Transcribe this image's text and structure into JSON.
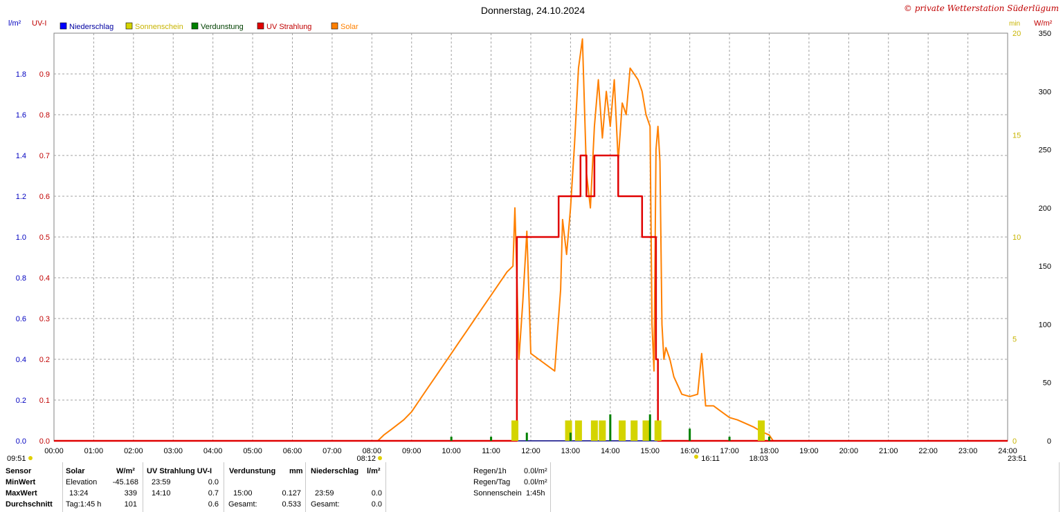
{
  "chart_data": {
    "type": "line",
    "title": "Donnerstag, 24.10.2024",
    "credit": "© private Wetterstation Süderlügum",
    "x_ticks": [
      "00:00",
      "01:00",
      "02:00",
      "03:00",
      "04:00",
      "05:00",
      "06:00",
      "07:00",
      "08:00",
      "09:00",
      "10:00",
      "11:00",
      "12:00",
      "13:00",
      "14:00",
      "15:00",
      "16:00",
      "17:00",
      "18:00",
      "19:00",
      "20:00",
      "21:00",
      "22:00",
      "23:00",
      "24:00"
    ],
    "xlim_hours": [
      0,
      24
    ],
    "axes": {
      "left_outer": {
        "unit": "l/m²",
        "ticks": [
          "0.0",
          "0.2",
          "0.4",
          "0.6",
          "0.8",
          "1.0",
          "1.2",
          "1.4",
          "1.6",
          "1.8"
        ],
        "ylim": [
          0,
          2.0
        ],
        "color": "#0000c0"
      },
      "left_inner": {
        "unit": "UV-I",
        "ticks": [
          "0.0",
          "0.1",
          "0.2",
          "0.3",
          "0.4",
          "0.5",
          "0.6",
          "0.7",
          "0.8",
          "0.9"
        ],
        "ylim": [
          0,
          1.0
        ],
        "color": "#c00000"
      },
      "right_inner": {
        "unit": "min",
        "ticks": [
          "0",
          "5",
          "10",
          "15",
          "20"
        ],
        "ylim": [
          0,
          20
        ],
        "color": "#c8b400"
      },
      "right_outer": {
        "unit": "W/m²",
        "ticks": [
          "0",
          "50",
          "100",
          "150",
          "200",
          "250",
          "300",
          "350"
        ],
        "ylim": [
          0,
          350
        ],
        "color": "#000000"
      }
    },
    "legend": [
      {
        "label": "Niederschlag",
        "color": "#0000ff",
        "text_color": "#0000a0"
      },
      {
        "label": "Sonnenschein",
        "color": "#d4d400",
        "text_color": "#c8b400"
      },
      {
        "label": "Verdunstung",
        "color": "#008000",
        "text_color": "#004000"
      },
      {
        "label": "UV Strahlung",
        "color": "#e00000",
        "text_color": "#c00000"
      },
      {
        "label": "Solar",
        "color": "#ff8000",
        "text_color": "#ff8000"
      }
    ],
    "series": [
      {
        "name": "Solar",
        "axis": "right_outer",
        "color": "#ff8000",
        "x": [
          8.15,
          8.3,
          8.5,
          8.8,
          9.0,
          9.2,
          9.4,
          9.6,
          9.8,
          10.0,
          10.2,
          10.4,
          10.6,
          10.8,
          11.0,
          11.2,
          11.4,
          11.55,
          11.6,
          11.65,
          11.7,
          11.8,
          11.9,
          12.0,
          12.2,
          12.4,
          12.6,
          12.75,
          12.8,
          12.9,
          13.0,
          13.1,
          13.2,
          13.3,
          13.4,
          13.5,
          13.6,
          13.7,
          13.8,
          13.9,
          14.0,
          14.1,
          14.2,
          14.3,
          14.4,
          14.5,
          14.6,
          14.7,
          14.8,
          14.9,
          15.0,
          15.05,
          15.1,
          15.15,
          15.2,
          15.25,
          15.3,
          15.35,
          15.4,
          15.5,
          15.6,
          15.8,
          16.0,
          16.2,
          16.3,
          16.4,
          16.6,
          16.8,
          17.0,
          17.2,
          17.4,
          17.6,
          17.8,
          18.0,
          18.1
        ],
        "y": [
          0,
          5,
          10,
          18,
          25,
          35,
          45,
          55,
          65,
          75,
          85,
          95,
          105,
          115,
          125,
          135,
          145,
          150,
          200,
          140,
          70,
          120,
          180,
          75,
          70,
          65,
          60,
          130,
          190,
          160,
          200,
          255,
          320,
          345,
          230,
          200,
          270,
          310,
          260,
          300,
          270,
          310,
          240,
          290,
          280,
          320,
          315,
          310,
          300,
          280,
          270,
          100,
          60,
          250,
          270,
          240,
          100,
          70,
          80,
          70,
          55,
          40,
          38,
          40,
          75,
          30,
          30,
          25,
          20,
          18,
          15,
          12,
          8,
          5,
          0
        ]
      },
      {
        "name": "UV Strahlung",
        "axis": "left_inner",
        "color": "#e00000",
        "step": true,
        "x": [
          0,
          11.65,
          11.65,
          12.7,
          12.7,
          13.25,
          13.25,
          13.4,
          13.4,
          13.6,
          13.6,
          14.2,
          14.2,
          14.8,
          14.8,
          15.15,
          15.15,
          15.2,
          15.2,
          24
        ],
        "y": [
          0,
          0,
          0.5,
          0.5,
          0.6,
          0.6,
          0.7,
          0.7,
          0.6,
          0.6,
          0.7,
          0.7,
          0.6,
          0.6,
          0.5,
          0.5,
          0.2,
          0.2,
          0,
          0
        ]
      },
      {
        "name": "Sonnenschein",
        "axis": "right_inner",
        "color": "#d4d400",
        "type": "bar",
        "x": [
          11.6,
          12.95,
          13.2,
          13.6,
          13.8,
          14.3,
          14.6,
          14.9,
          15.2,
          17.8
        ],
        "y": [
          1,
          1,
          1,
          1,
          1,
          1,
          1,
          1,
          1,
          1
        ]
      },
      {
        "name": "Verdunstung",
        "axis": "left_outer",
        "color": "#008000",
        "type": "bar",
        "x": [
          10.0,
          11.0,
          11.9,
          13.0,
          14.0,
          15.0,
          16.0,
          17.0,
          18.0
        ],
        "y": [
          0.02,
          0.02,
          0.04,
          0.04,
          0.13,
          0.13,
          0.06,
          0.02,
          0.02
        ]
      }
    ],
    "axis_annotations": [
      "09:51",
      "08:12",
      "16:11",
      "18:03",
      "23:51"
    ],
    "grid": true
  },
  "table": {
    "header": {
      "sensor": "Sensor",
      "solar": "Solar",
      "solar_unit": "W/m²",
      "uv": "UV Strahlung UV-I",
      "verd": "Verdunstung",
      "verd_unit": "mm",
      "nied": "Niederschlag",
      "nied_unit": "l/m²"
    },
    "rows": [
      {
        "label": "MinWert",
        "solar_time": "Elevation",
        "solar_val": "-45.168",
        "uv_time": "23:59",
        "uv_val": "0.0",
        "verd_time": "",
        "verd_val": "",
        "nied_time": "",
        "nied_val": ""
      },
      {
        "label": "MaxWert",
        "solar_time": "13:24",
        "solar_val": "339",
        "uv_time": "14:10",
        "uv_val": "0.7",
        "verd_time": "15:00",
        "verd_val": "0.127",
        "nied_time": "23:59",
        "nied_val": "0.0"
      },
      {
        "label": "Durchschnitt",
        "solar_time": "Tag:1:45 h",
        "solar_val": "101",
        "uv_time": "",
        "uv_val": "0.6",
        "verd_time": "Gesamt:",
        "verd_val": "0.533",
        "nied_time": "Gesamt:",
        "nied_val": "0.0"
      }
    ],
    "extra": [
      {
        "label": "Regen/1h",
        "value": "0.0l/m²"
      },
      {
        "label": "Regen/Tag",
        "value": "0.0l/m²"
      },
      {
        "label": "Sonnenschein",
        "value": "1:45h"
      }
    ]
  }
}
